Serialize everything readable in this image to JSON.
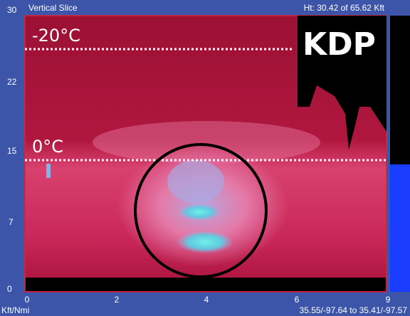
{
  "header": {
    "title": "Vertical Slice",
    "height": "Ht: 30.42 of 65.62 Kft"
  },
  "axes": {
    "y_ticks": [
      "30",
      "22",
      "15",
      "7",
      "0"
    ],
    "x_ticks": [
      "0",
      "2",
      "4",
      "6",
      "9"
    ]
  },
  "footer": {
    "units": "Kft/Nmi",
    "coordinates": "35.55/-97.64 to 35.41/-97.57"
  },
  "annotations": {
    "upper_isotherm": "-20°C",
    "lower_isotherm": "0°C",
    "product": "KDP"
  }
}
